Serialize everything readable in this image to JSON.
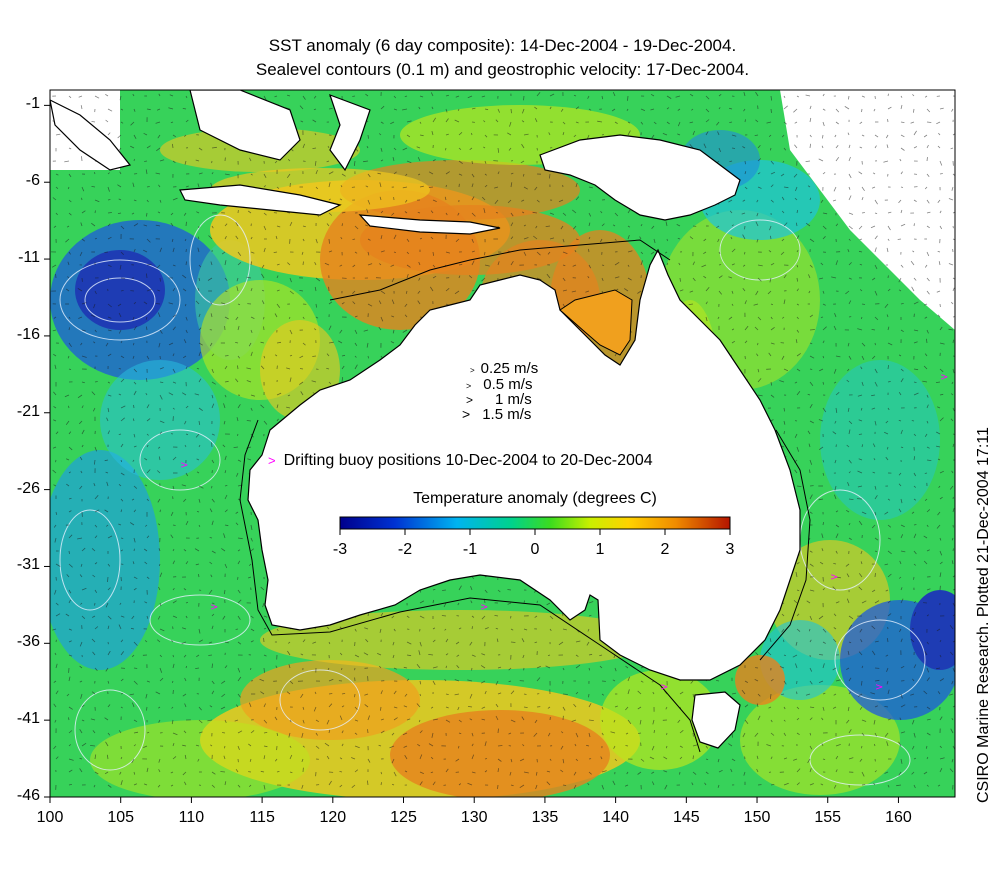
{
  "titles": {
    "line1": "SST anomaly (6 day composite): 14-Dec-2004 - 19-Dec-2004.",
    "line2": "Sealevel contours (0.1 m) and geostrophic velocity: 17-Dec-2004."
  },
  "axes": {
    "y_ticks": [
      "-1",
      "-6",
      "-11",
      "-16",
      "-21",
      "-26",
      "-31",
      "-36",
      "-41",
      "-46"
    ],
    "x_ticks": [
      "100",
      "105",
      "110",
      "115",
      "120",
      "125",
      "130",
      "135",
      "140",
      "145",
      "150",
      "155",
      "160"
    ],
    "lon_range": [
      100,
      164
    ],
    "lat_range": [
      -46,
      0
    ]
  },
  "velocity_legend": {
    "marks": [
      ">",
      ">",
      ">",
      ">"
    ],
    "labels": [
      "0.25 m/s",
      "0.5 m/s",
      "1 m/s",
      "1.5 m/s"
    ]
  },
  "buoy_legend": {
    "marker": ">",
    "label": "Drifting buoy positions 10-Dec-2004 to 20-Dec-2004"
  },
  "colorbar": {
    "title": "Temperature anomaly (degrees C)",
    "ticks": [
      "-3",
      "-2",
      "-1",
      "0",
      "1",
      "2",
      "3"
    ],
    "range": [
      -3,
      3
    ]
  },
  "credit": "CSIRO Marine Research. Plotted 21-Dec-2004 17:11",
  "colors": {
    "cold": "#1e3cb4",
    "cool": "#1ec3dc",
    "neutral": "#37d25a",
    "mild": "#b9e61e",
    "warm": "#f0c81e",
    "hot": "#e6821e",
    "land": "#ffffff",
    "coast": "#000000",
    "contour": "#e6f0ff",
    "buoy": "#ff00ff"
  }
}
